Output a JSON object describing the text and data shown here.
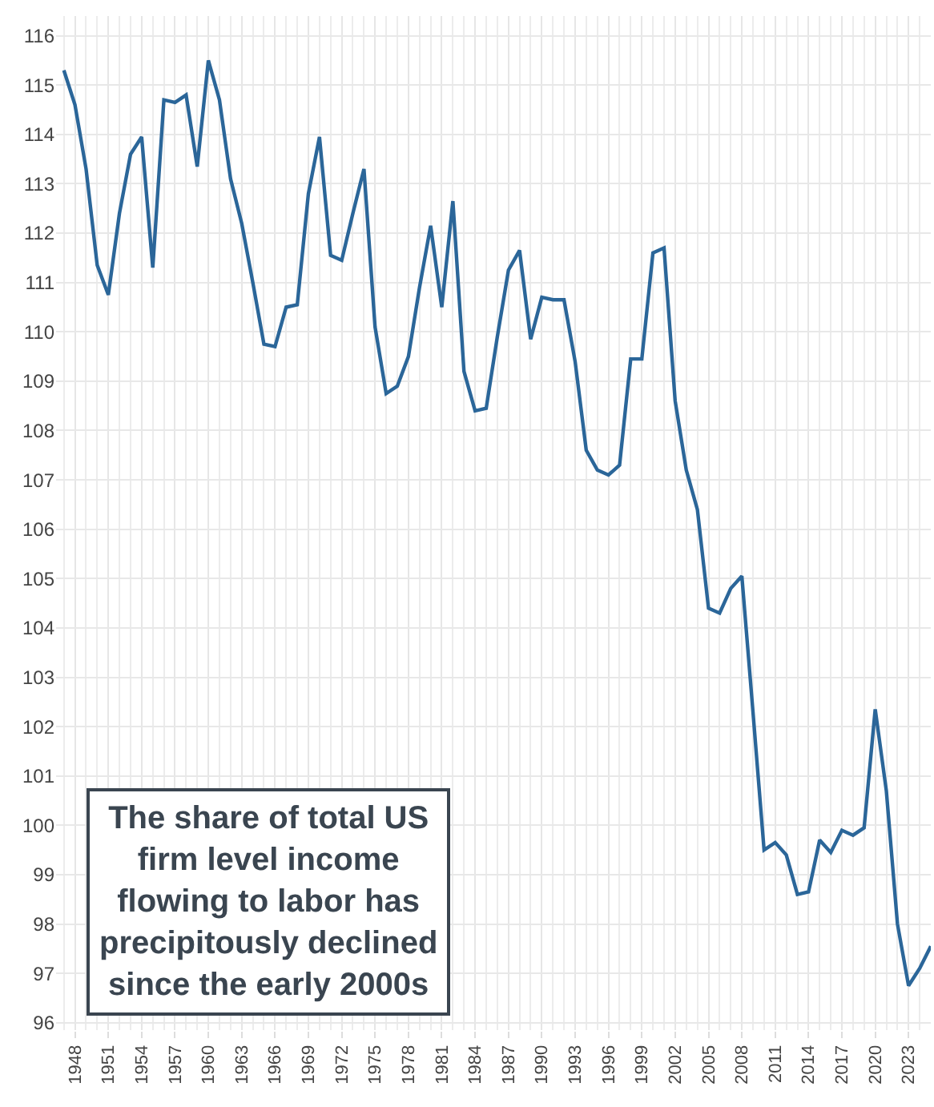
{
  "chart_data": {
    "type": "line",
    "x": [
      1947,
      1948,
      1949,
      1950,
      1951,
      1952,
      1953,
      1954,
      1955,
      1956,
      1957,
      1958,
      1959,
      1960,
      1961,
      1962,
      1963,
      1964,
      1965,
      1966,
      1967,
      1968,
      1969,
      1970,
      1971,
      1972,
      1973,
      1974,
      1975,
      1976,
      1977,
      1978,
      1979,
      1980,
      1981,
      1982,
      1983,
      1984,
      1985,
      1986,
      1987,
      1988,
      1989,
      1990,
      1991,
      1992,
      1993,
      1994,
      1995,
      1996,
      1997,
      1998,
      1999,
      2000,
      2001,
      2002,
      2003,
      2004,
      2005,
      2006,
      2007,
      2008,
      2009,
      2010,
      2011,
      2012,
      2013,
      2014,
      2015,
      2016,
      2017,
      2018,
      2019,
      2020,
      2021,
      2022,
      2023,
      2024,
      2025
    ],
    "series": [
      {
        "color": "#2b6699",
        "values": [
          115.3,
          114.6,
          113.3,
          111.35,
          110.75,
          112.4,
          113.6,
          113.95,
          111.3,
          114.7,
          114.65,
          114.8,
          113.35,
          115.5,
          114.7,
          113.1,
          112.2,
          111.0,
          109.75,
          109.7,
          110.5,
          110.55,
          112.8,
          113.95,
          111.55,
          111.45,
          112.4,
          113.3,
          110.1,
          108.75,
          108.9,
          109.5,
          110.9,
          112.15,
          110.5,
          112.65,
          109.2,
          108.4,
          108.45,
          109.9,
          111.25,
          111.65,
          109.85,
          110.7,
          110.65,
          110.65,
          109.4,
          107.6,
          107.2,
          107.1,
          107.3,
          109.45,
          109.45,
          111.6,
          111.7,
          108.6,
          107.2,
          106.4,
          104.4,
          104.3,
          104.8,
          105.05,
          102.3,
          99.5,
          99.65,
          99.4,
          98.6,
          98.65,
          99.7,
          99.45,
          99.9,
          99.8,
          99.95,
          102.35,
          100.7,
          98.0,
          96.75,
          97.1,
          97.55
        ]
      }
    ],
    "xlim": [
      1946.3,
      2025.0
    ],
    "xticks": [
      1948,
      1951,
      1954,
      1957,
      1960,
      1963,
      1966,
      1969,
      1972,
      1975,
      1978,
      1981,
      1984,
      1987,
      1990,
      1993,
      1996,
      1999,
      2002,
      2005,
      2008,
      2011,
      2014,
      2017,
      2020,
      2023
    ],
    "ylim": [
      95.85,
      116.4
    ],
    "yticks": [
      96,
      97,
      98,
      99,
      100,
      101,
      102,
      103,
      104,
      105,
      106,
      107,
      108,
      109,
      110,
      111,
      112,
      113,
      114,
      115,
      116
    ],
    "grid": true,
    "legend": false,
    "marker": "none",
    "line_style": "solid",
    "annotations": [
      "The share of total US firm level income flowing to labor has precipitously declined since the early 2000s"
    ]
  }
}
